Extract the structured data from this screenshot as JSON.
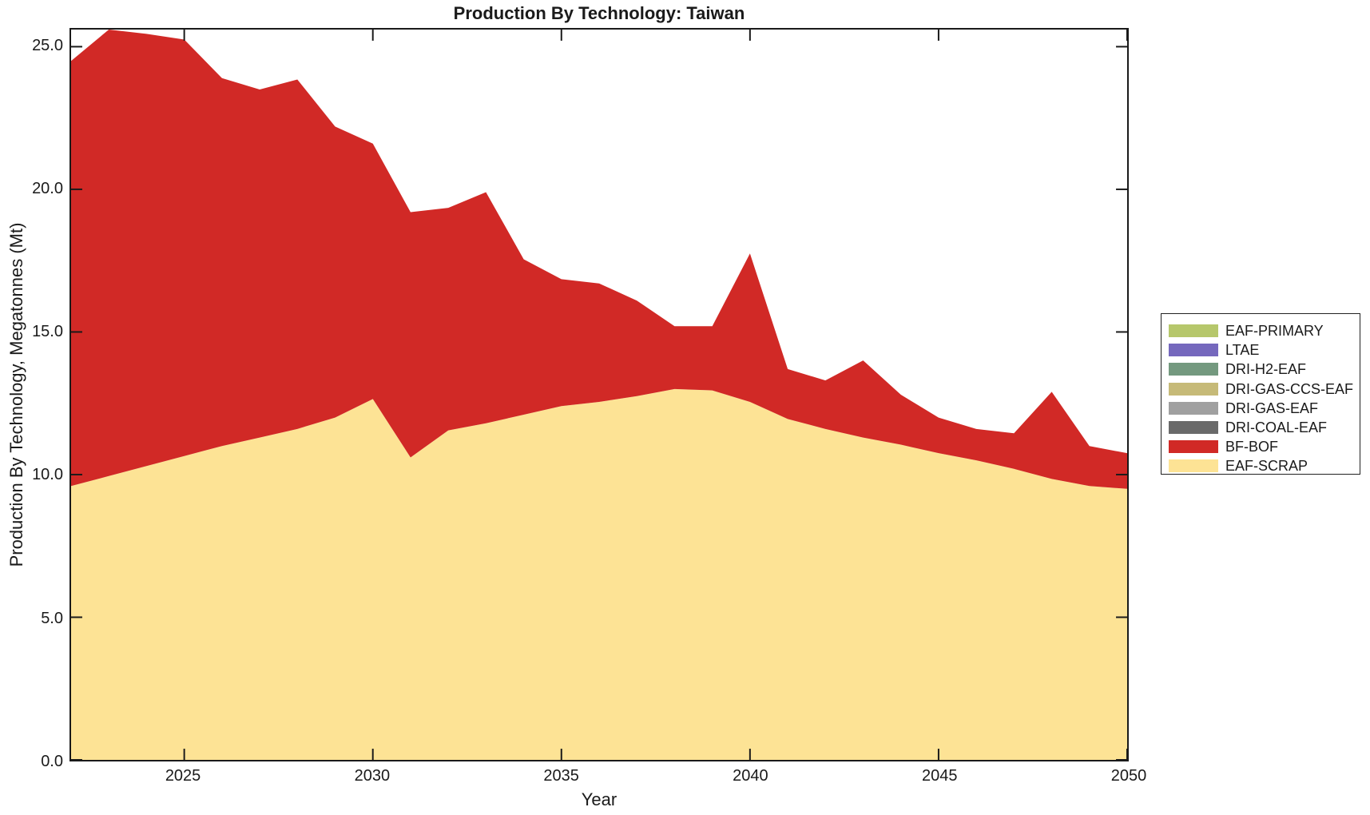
{
  "title": "Production By Technology: Taiwan",
  "axes": {
    "xlabel": "Year",
    "ylabel": "Production By Technology, Megatonnes (Mt)"
  },
  "frame_color": "#1a1a1a",
  "chart_data": {
    "type": "area",
    "stacked": true,
    "title": "Production By Technology: Taiwan",
    "xlabel": "Year",
    "ylabel": "Production By Technology, Megatonnes (Mt)",
    "grid": false,
    "legend_position": "right-outside",
    "xlim": [
      2022,
      2050
    ],
    "ylim": [
      0,
      25.6
    ],
    "xticks": {
      "values": [
        2025,
        2030,
        2035,
        2040,
        2045,
        2050
      ],
      "labels": [
        "2025",
        "2030",
        "2035",
        "2040",
        "2045",
        "2050"
      ]
    },
    "yticks": {
      "values": [
        0,
        5,
        10,
        15,
        20,
        25
      ],
      "labels": [
        "0.0",
        "5.0",
        "10.0",
        "15.0",
        "20.0",
        "25.0"
      ]
    },
    "x": [
      2022,
      2023,
      2024,
      2025,
      2026,
      2027,
      2028,
      2029,
      2030,
      2031,
      2032,
      2033,
      2034,
      2035,
      2036,
      2037,
      2038,
      2039,
      2040,
      2041,
      2042,
      2043,
      2044,
      2045,
      2046,
      2047,
      2048,
      2049,
      2050
    ],
    "stack_order_bottom_to_top": [
      "EAF-SCRAP",
      "BF-BOF",
      "DRI-COAL-EAF",
      "DRI-GAS-EAF",
      "DRI-GAS-CCS-EAF",
      "DRI-H2-EAF",
      "LTAE",
      "EAF-PRIMARY"
    ],
    "series": [
      {
        "name": "EAF-PRIMARY",
        "color": "#b6c76b",
        "values": [
          0,
          0,
          0,
          0,
          0,
          0,
          0,
          0,
          0,
          0,
          0,
          0,
          0,
          0,
          0,
          0,
          0,
          0,
          0,
          0,
          0,
          0,
          0,
          0,
          0,
          0,
          0,
          0,
          0
        ]
      },
      {
        "name": "LTAE",
        "color": "#7568bd",
        "values": [
          0,
          0,
          0,
          0,
          0,
          0,
          0,
          0,
          0,
          0,
          0,
          0,
          0,
          0,
          0,
          0,
          0,
          0,
          0,
          0,
          0,
          0,
          0,
          0,
          0,
          0,
          0,
          0,
          0
        ]
      },
      {
        "name": "DRI-H2-EAF",
        "color": "#74997f",
        "values": [
          0,
          0,
          0,
          0,
          0,
          0,
          0,
          0,
          0,
          0,
          0,
          0,
          0,
          0,
          0,
          0,
          0,
          0,
          0,
          0,
          0,
          0,
          0,
          0,
          0,
          0,
          0,
          0,
          0
        ]
      },
      {
        "name": "DRI-GAS-CCS-EAF",
        "color": "#c6ba78",
        "values": [
          0,
          0,
          0,
          0,
          0,
          0,
          0,
          0,
          0,
          0,
          0,
          0,
          0,
          0,
          0,
          0,
          0,
          0,
          0,
          0,
          0,
          0,
          0,
          0,
          0,
          0,
          0,
          0,
          0
        ]
      },
      {
        "name": "DRI-GAS-EAF",
        "color": "#a0a0a0",
        "values": [
          0,
          0,
          0,
          0,
          0,
          0,
          0,
          0,
          0,
          0,
          0,
          0,
          0,
          0,
          0,
          0,
          0,
          0,
          0,
          0,
          0,
          0,
          0,
          0,
          0,
          0,
          0,
          0,
          0
        ]
      },
      {
        "name": "DRI-COAL-EAF",
        "color": "#6a6a6a",
        "values": [
          0,
          0,
          0,
          0,
          0,
          0,
          0,
          0,
          0,
          0,
          0,
          0,
          0,
          0,
          0,
          0,
          0,
          0,
          0,
          0,
          0,
          0,
          0,
          0,
          0,
          0,
          0,
          0,
          0
        ]
      },
      {
        "name": "BF-BOF",
        "color": "#d12926",
        "values": [
          14.9,
          15.65,
          15.15,
          14.6,
          12.9,
          12.2,
          12.25,
          10.2,
          8.95,
          8.6,
          7.8,
          8.1,
          5.45,
          4.45,
          4.15,
          3.35,
          2.2,
          2.25,
          5.2,
          1.75,
          1.7,
          2.7,
          1.75,
          1.25,
          1.1,
          1.25,
          3.05,
          1.4,
          1.25
        ]
      },
      {
        "name": "EAF-SCRAP",
        "color": "#fde395",
        "values": [
          9.6,
          9.95,
          10.3,
          10.65,
          11.0,
          11.3,
          11.6,
          12.0,
          12.65,
          10.6,
          11.55,
          11.8,
          12.1,
          12.4,
          12.55,
          12.75,
          13.0,
          12.95,
          12.55,
          11.95,
          11.6,
          11.3,
          11.05,
          10.75,
          10.5,
          10.2,
          9.85,
          9.6,
          9.5
        ]
      }
    ]
  }
}
